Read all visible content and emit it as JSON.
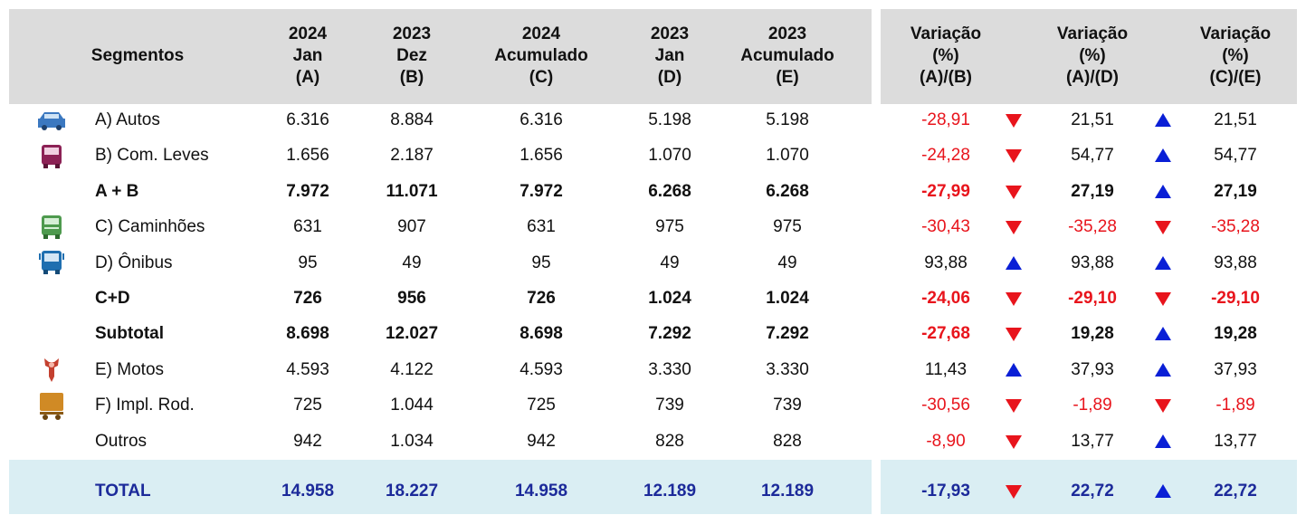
{
  "table": {
    "header": {
      "segment": "Segmentos",
      "columns": [
        [
          "2024",
          "Jan",
          "(A)"
        ],
        [
          "2023",
          "Dez",
          "(B)"
        ],
        [
          "2024",
          "Acumulado",
          "(C)"
        ],
        [
          "2023",
          "Jan",
          "(D)"
        ],
        [
          "2023",
          "Acumulado",
          "(E)"
        ]
      ],
      "variations": [
        [
          "Variação",
          "(%)",
          "(A)/(B)"
        ],
        [
          "Variação",
          "(%)",
          "(A)/(D)"
        ],
        [
          "Variação",
          "(%)",
          "(C)/(E)"
        ]
      ]
    },
    "rows": [
      {
        "label": "A) Autos",
        "values": [
          "6.316",
          "8.884",
          "6.316",
          "5.198",
          "5.198"
        ],
        "variations": [
          "-28,91",
          "21,51",
          "21,51"
        ]
      },
      {
        "label": "B) Com. Leves",
        "values": [
          "1.656",
          "2.187",
          "1.656",
          "1.070",
          "1.070"
        ],
        "variations": [
          "-24,28",
          "54,77",
          "54,77"
        ]
      },
      {
        "label": "A + B",
        "bold": true,
        "values": [
          "7.972",
          "11.071",
          "7.972",
          "6.268",
          "6.268"
        ],
        "variations": [
          "-27,99",
          "27,19",
          "27,19"
        ]
      },
      {
        "label": "C) Caminhões",
        "values": [
          "631",
          "907",
          "631",
          "975",
          "975"
        ],
        "variations": [
          "-30,43",
          "-35,28",
          "-35,28"
        ]
      },
      {
        "label": "D) Ônibus",
        "values": [
          "95",
          "49",
          "95",
          "49",
          "49"
        ],
        "variations": [
          "93,88",
          "93,88",
          "93,88"
        ]
      },
      {
        "label": "C+D",
        "bold": true,
        "values": [
          "726",
          "956",
          "726",
          "1.024",
          "1.024"
        ],
        "variations": [
          "-24,06",
          "-29,10",
          "-29,10"
        ]
      },
      {
        "label": "Subtotal",
        "bold": true,
        "values": [
          "8.698",
          "12.027",
          "8.698",
          "7.292",
          "7.292"
        ],
        "variations": [
          "-27,68",
          "19,28",
          "19,28"
        ]
      },
      {
        "label": "E) Motos",
        "values": [
          "4.593",
          "4.122",
          "4.593",
          "3.330",
          "3.330"
        ],
        "variations": [
          "11,43",
          "37,93",
          "37,93"
        ]
      },
      {
        "label": "F) Impl. Rod.",
        "values": [
          "725",
          "1.044",
          "725",
          "739",
          "739"
        ],
        "variations": [
          "-30,56",
          "-1,89",
          "-1,89"
        ]
      },
      {
        "label": "Outros",
        "values": [
          "942",
          "1.034",
          "942",
          "828",
          "828"
        ],
        "variations": [
          "-8,90",
          "13,77",
          "13,77"
        ]
      }
    ],
    "total": {
      "label": "TOTAL",
      "values": [
        "14.958",
        "18.227",
        "14.958",
        "12.189",
        "12.189"
      ],
      "variations": [
        "-17,93",
        "22,72",
        "22,72"
      ]
    }
  }
}
